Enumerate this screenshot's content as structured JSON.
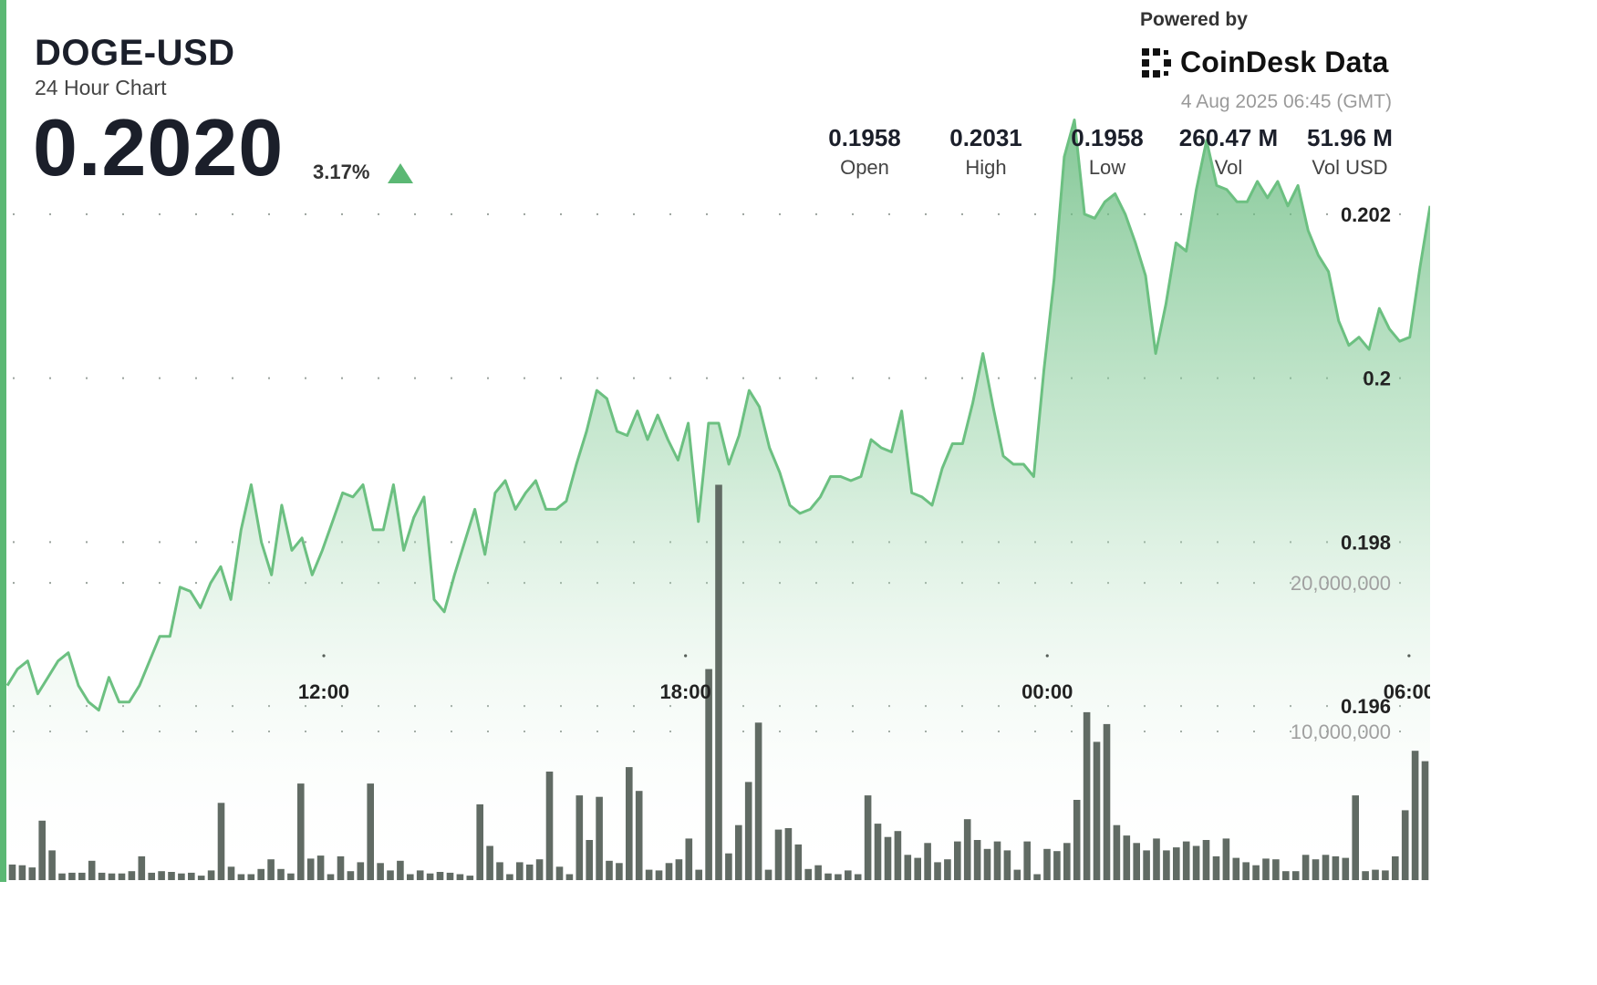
{
  "header": {
    "pair": "DOGE-USD",
    "subtitle": "24 Hour Chart",
    "price": "0.2020",
    "change": "3.17%",
    "direction": "up",
    "powered_by": "Powered by",
    "brand": "CoinDesk Data",
    "timestamp": "4 Aug 2025 06:45 (GMT)"
  },
  "stats": [
    {
      "value": "0.1958",
      "label": "Open"
    },
    {
      "value": "0.2031",
      "label": "High"
    },
    {
      "value": "0.1958",
      "label": "Low"
    },
    {
      "value": "260.47 M",
      "label": "Vol"
    },
    {
      "value": "51.96 M",
      "label": "Vol USD"
    }
  ],
  "colors": {
    "accent": "#5bb874",
    "line": "#6cc081",
    "bar": "#616b64",
    "grid": "#9aa29d"
  },
  "chart_data": {
    "type": "line",
    "price_ticks": [
      0.202,
      0.2,
      0.198,
      0.196
    ],
    "price_tick_labels": [
      "0.202",
      "0.2",
      "0.198",
      "0.196"
    ],
    "price_ylim": [
      0.1946,
      0.2035
    ],
    "volume_ticks": [
      20000000,
      10000000
    ],
    "volume_tick_labels": [
      "20,000,000",
      "10,000,000"
    ],
    "volume_ylim": [
      0,
      27000000
    ],
    "x_tick_labels": [
      "12:00",
      "18:00",
      "00:00",
      "06:00"
    ],
    "x_tick_hours": [
      5.25,
      11.25,
      17.25,
      23.25
    ],
    "x_range_hours": [
      0,
      23.6
    ],
    "series": [
      {
        "kind": "price",
        "values": [
          0.19625,
          0.19645,
          0.19655,
          0.19615,
          0.19635,
          0.19655,
          0.19665,
          0.19625,
          0.19605,
          0.19595,
          0.19635,
          0.19605,
          0.19605,
          0.19625,
          0.19655,
          0.19685,
          0.19685,
          0.19745,
          0.1974,
          0.1972,
          0.1975,
          0.1977,
          0.1973,
          0.19815,
          0.1987,
          0.198,
          0.1976,
          0.19845,
          0.1979,
          0.19805,
          0.1976,
          0.1979,
          0.19825,
          0.1986,
          0.19855,
          0.1987,
          0.19815,
          0.19815,
          0.1987,
          0.1979,
          0.1983,
          0.19855,
          0.1973,
          0.19715,
          0.1976,
          0.198,
          0.1984,
          0.19785,
          0.1986,
          0.19875,
          0.1984,
          0.1986,
          0.19875,
          0.1984,
          0.1984,
          0.1985,
          0.19895,
          0.19935,
          0.19985,
          0.19975,
          0.19935,
          0.1993,
          0.1996,
          0.19925,
          0.19955,
          0.19925,
          0.199,
          0.19945,
          0.19825,
          0.19945,
          0.19945,
          0.19895,
          0.1993,
          0.19985,
          0.19965,
          0.19915,
          0.19885,
          0.19845,
          0.19835,
          0.1984,
          0.19855,
          0.1988,
          0.1988,
          0.19875,
          0.1988,
          0.19925,
          0.19915,
          0.1991,
          0.1996,
          0.1986,
          0.19855,
          0.19845,
          0.1989,
          0.1992,
          0.1992,
          0.1997,
          0.2003,
          0.19965,
          0.19905,
          0.19895,
          0.19895,
          0.1988,
          0.2001,
          0.2012,
          0.2027,
          0.20315,
          0.202,
          0.20195,
          0.20215,
          0.20225,
          0.202,
          0.20165,
          0.20125,
          0.2003,
          0.2009,
          0.20165,
          0.20155,
          0.2023,
          0.2029,
          0.20235,
          0.2023,
          0.20215,
          0.20215,
          0.2024,
          0.2022,
          0.2024,
          0.2021,
          0.20235,
          0.2018,
          0.2015,
          0.2013,
          0.2007,
          0.2004,
          0.2005,
          0.20035,
          0.20085,
          0.2006,
          0.20045,
          0.2005,
          0.20135,
          0.2021
        ]
      },
      {
        "kind": "volume",
        "values": [
          1050000,
          1000000,
          850000,
          4000000,
          2000000,
          450000,
          500000,
          500000,
          1300000,
          500000,
          450000,
          450000,
          600000,
          1600000,
          500000,
          600000,
          550000,
          450000,
          500000,
          300000,
          650000,
          5200000,
          900000,
          400000,
          400000,
          750000,
          1400000,
          750000,
          450000,
          6500000,
          1450000,
          1650000,
          400000,
          1600000,
          600000,
          1200000,
          6500000,
          1150000,
          650000,
          1300000,
          400000,
          650000,
          450000,
          550000,
          500000,
          400000,
          300000,
          5100000,
          2300000,
          1200000,
          400000,
          1200000,
          1050000,
          1400000,
          7300000,
          900000,
          400000,
          5700000,
          2700000,
          5600000,
          1300000,
          1150000,
          7600000,
          6000000,
          700000,
          650000,
          1150000,
          1400000,
          2800000,
          700000,
          14200000,
          26600000,
          1800000,
          3700000,
          6600000,
          10600000,
          700000,
          3400000,
          3500000,
          2400000,
          750000,
          1000000,
          450000,
          400000,
          650000,
          400000,
          5700000,
          3800000,
          2900000,
          3300000,
          1700000,
          1500000,
          2500000,
          1200000,
          1400000,
          2600000,
          4100000,
          2700000,
          2100000,
          2600000,
          2000000,
          700000,
          2600000,
          400000,
          2100000,
          1950000,
          2500000,
          5400000,
          11300000,
          9300000,
          10500000,
          3700000,
          3000000,
          2500000,
          2000000,
          2800000,
          2000000,
          2200000,
          2600000,
          2300000,
          2700000,
          1600000,
          2800000,
          1500000,
          1200000,
          1000000,
          1450000,
          1400000,
          600000,
          600000,
          1700000,
          1400000,
          1700000,
          1600000,
          1500000,
          5700000,
          600000,
          700000,
          650000,
          1600000,
          4700000,
          8700000,
          8000000
        ]
      }
    ]
  }
}
